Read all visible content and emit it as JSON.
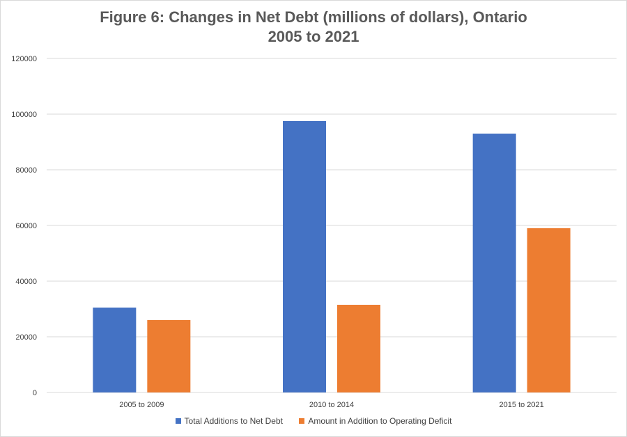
{
  "chart_data": {
    "type": "bar",
    "title_line1": "Figure 6: Changes in Net Debt (millions of dollars), Ontario",
    "title_line2": "2005 to 2021",
    "categories": [
      "2005 to 2009",
      "2010 to 2014",
      "2015 to 2021"
    ],
    "series": [
      {
        "name": "Total Additions to Net Debt",
        "color": "#4472c4",
        "values": [
          30500,
          97500,
          93000
        ]
      },
      {
        "name": "Amount in Addition to Operating  Deficit",
        "color": "#ed7d31",
        "values": [
          26000,
          31500,
          59000
        ]
      }
    ],
    "yticks": [
      "0",
      "20000",
      "40000",
      "60000",
      "80000",
      "100000",
      "120000"
    ],
    "ylim": [
      0,
      120000
    ],
    "grid": true,
    "legend_position": "bottom"
  }
}
